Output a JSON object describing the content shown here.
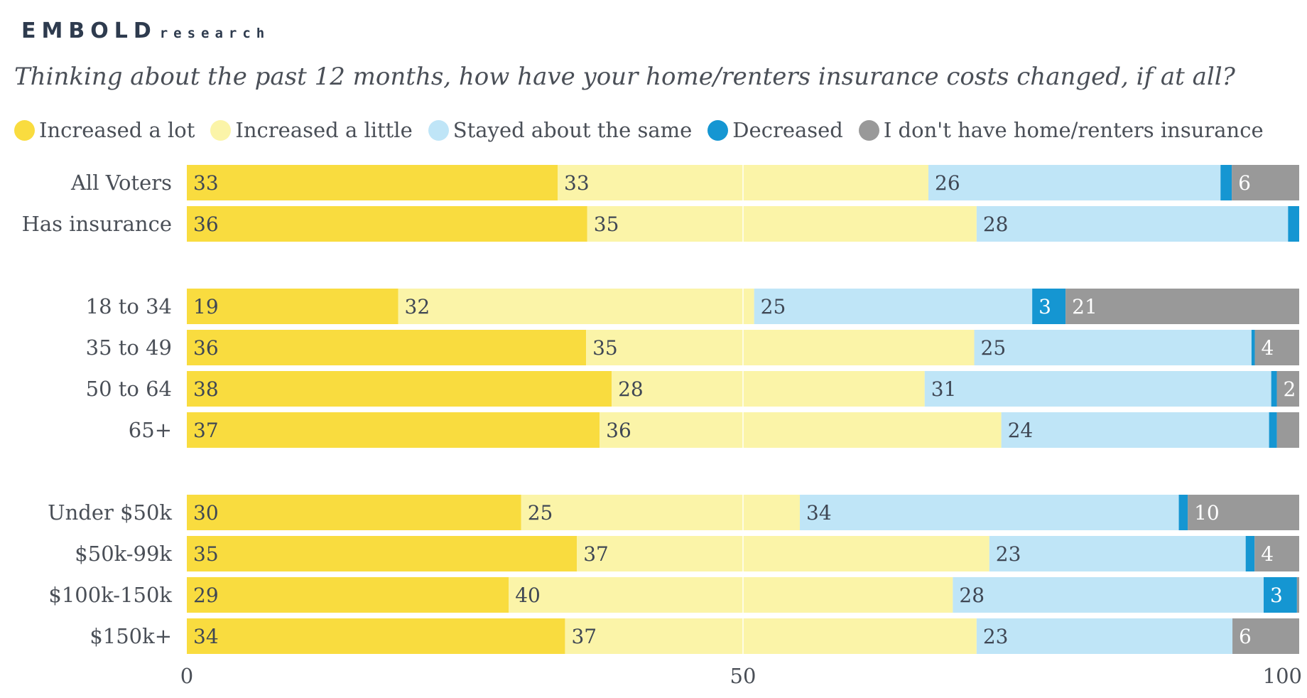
{
  "brand": {
    "name": "EMBOLD",
    "sub": "research"
  },
  "chart_data": {
    "type": "bar",
    "orientation": "horizontal",
    "stacked": true,
    "title": "Thinking about the past 12 months, how have your home/renters insurance costs changed, if at all?",
    "categories": [
      "All Voters",
      "Has insurance",
      "18 to 34",
      "35 to 49",
      "50 to 64",
      "65+",
      "Under $50k",
      "$50k-99k",
      "$100k-150k",
      "$150k+"
    ],
    "groups": [
      [
        0,
        1
      ],
      [
        2,
        3,
        4,
        5
      ],
      [
        6,
        7,
        8,
        9
      ]
    ],
    "series": [
      {
        "name": "Increased a lot",
        "color": "#f9dc3f",
        "values": [
          33,
          36,
          19,
          36,
          38,
          37,
          30,
          35,
          29,
          34
        ]
      },
      {
        "name": "Increased a little",
        "color": "#fbf4a8",
        "values": [
          33,
          35,
          32,
          35,
          28,
          36,
          25,
          37,
          40,
          37
        ]
      },
      {
        "name": "Stayed about the same",
        "color": "#bfe5f7",
        "values": [
          26,
          28,
          25,
          25,
          31,
          24,
          34,
          23,
          28,
          23
        ]
      },
      {
        "name": "Decreased",
        "color": "#1596d2",
        "values": [
          1,
          1,
          3,
          0.3,
          0.5,
          0.7,
          0.8,
          0.8,
          3,
          0
        ]
      },
      {
        "name": "I don't have home/renters insurance",
        "color": "#999999",
        "values": [
          6,
          0,
          21,
          4,
          2,
          2,
          10,
          4,
          0.2,
          6
        ]
      }
    ],
    "data_labels": [
      [
        "33",
        "33",
        "26",
        "",
        "6"
      ],
      [
        "36",
        "35",
        "28",
        "",
        ""
      ],
      [
        "19",
        "32",
        "25",
        "3",
        "21"
      ],
      [
        "36",
        "35",
        "25",
        "",
        "4"
      ],
      [
        "38",
        "28",
        "31",
        "",
        "2"
      ],
      [
        "37",
        "36",
        "24",
        "",
        ""
      ],
      [
        "30",
        "25",
        "34",
        "",
        "10"
      ],
      [
        "35",
        "37",
        "23",
        "",
        "4"
      ],
      [
        "29",
        "40",
        "28",
        "3",
        ""
      ],
      [
        "34",
        "37",
        "23",
        "",
        "6"
      ]
    ],
    "xlim": [
      0,
      100
    ],
    "x_ticks": [
      0,
      50,
      100
    ],
    "grid": true,
    "legend_position": "top"
  }
}
